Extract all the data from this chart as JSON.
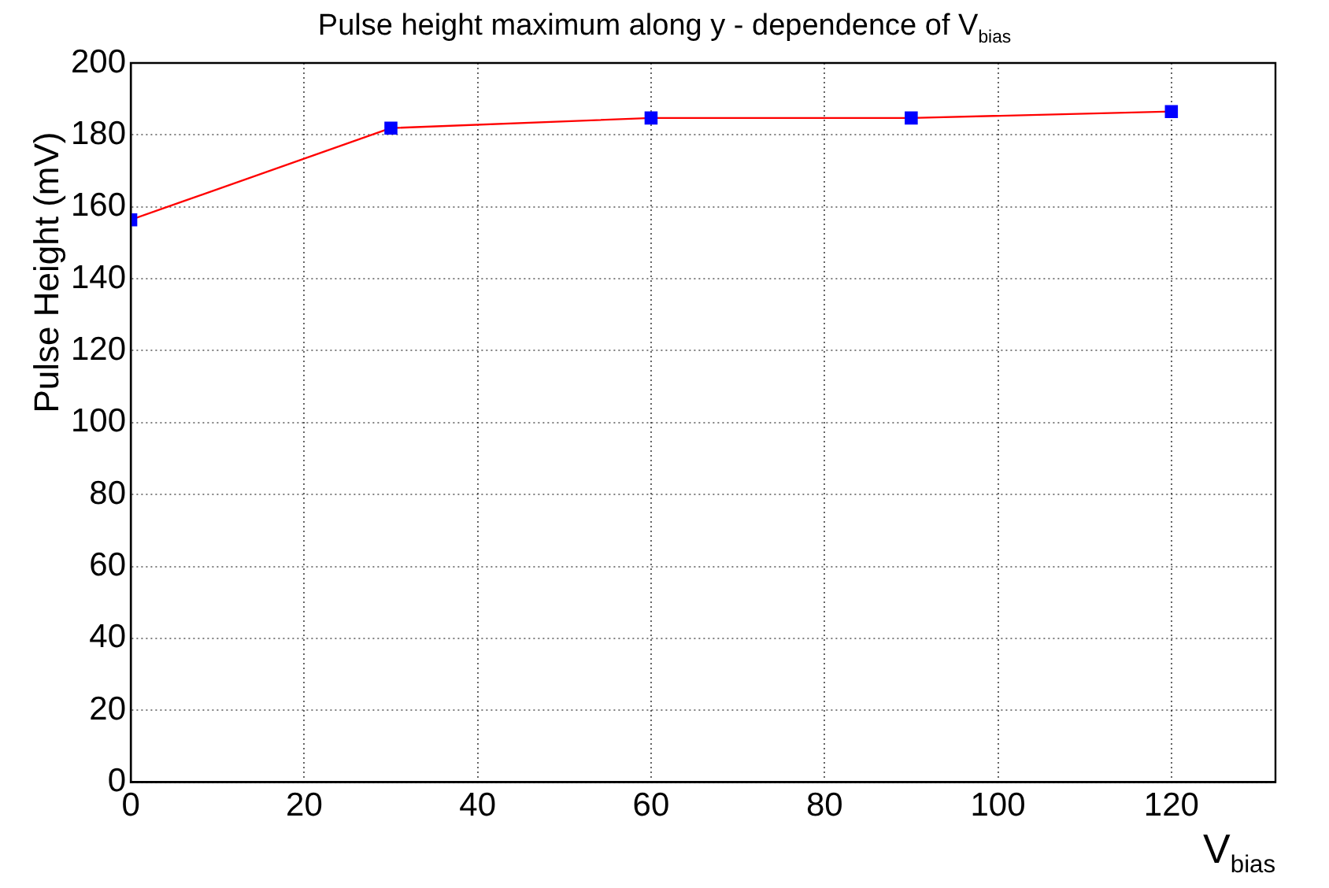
{
  "chart_data": {
    "type": "line",
    "title": "Pulse height maximum along y - dependence of V$_{bias}$",
    "xlabel": "V$_{bias}$",
    "ylabel": "Pulse Height (mV)",
    "x": [
      0,
      30,
      60,
      90,
      120
    ],
    "series": [
      {
        "color": "#ff0000",
        "colors": [
          "#0000ff",
          "#0000ff",
          "#0000ff",
          "#0000ff",
          "#0000ff"
        ],
        "values": [
          156.4,
          181.9,
          184.7,
          184.7,
          186.5
        ]
      }
    ],
    "marker": "square",
    "line_style": "solid",
    "xlim": [
      0,
      132
    ],
    "xticks": [
      0,
      20,
      40,
      60,
      80,
      100,
      120
    ],
    "ylim": [
      0,
      200
    ],
    "yticks": [
      0,
      20,
      40,
      60,
      80,
      100,
      120,
      140,
      160,
      180,
      200
    ],
    "grid": true,
    "legend": false
  }
}
